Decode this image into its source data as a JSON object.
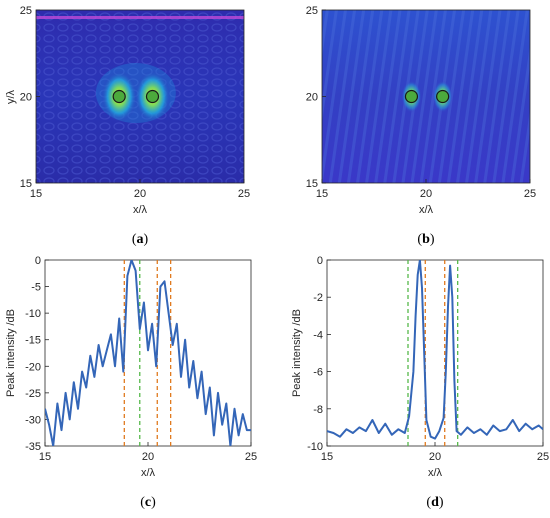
{
  "panels": [
    {
      "label": "a",
      "type": "heatmap",
      "xlabel": "x/λ",
      "ylabel": "y/λ",
      "xlim": [
        15,
        25
      ],
      "ylim": [
        15,
        25
      ],
      "xticks": [
        "15",
        "20",
        "25"
      ],
      "yticks": [
        "15",
        "20",
        "25"
      ],
      "targets": [
        {
          "x": 19.0,
          "y": 20.0
        },
        {
          "x": 20.6,
          "y": 20.0
        }
      ]
    },
    {
      "label": "b",
      "type": "heatmap",
      "xlabel": "x/λ",
      "ylabel": "",
      "xlim": [
        15,
        25
      ],
      "ylim": [
        15,
        25
      ],
      "xticks": [
        "15",
        "20",
        "25"
      ],
      "yticks": [
        "15",
        "20",
        "25"
      ],
      "targets": [
        {
          "x": 19.3,
          "y": 20.0
        },
        {
          "x": 20.8,
          "y": 20.0
        }
      ]
    },
    {
      "label": "c",
      "type": "line",
      "xlabel": "x/λ",
      "ylabel": "Peak intensity /dB",
      "xlim": [
        15,
        25
      ],
      "ylim": [
        -35,
        0
      ],
      "xticks": [
        "15",
        "20",
        "25"
      ],
      "yticks": [
        "0",
        "-5",
        "-10",
        "-15",
        "-20",
        "-25",
        "-30",
        "-35"
      ]
    },
    {
      "label": "d",
      "type": "line",
      "xlabel": "x/λ",
      "ylabel": "Peak intensity /dB",
      "xlim": [
        15,
        25
      ],
      "ylim": [
        -10,
        0
      ],
      "xticks": [
        "15",
        "20",
        "25"
      ],
      "yticks": [
        "0",
        "-2",
        "-4",
        "-6",
        "-8",
        "-10"
      ]
    }
  ],
  "chart_data": [
    {
      "type": "heatmap",
      "panel": "a",
      "xlabel": "x/λ",
      "ylabel": "y/λ",
      "xlim": [
        15,
        25
      ],
      "ylim": [
        15,
        25
      ],
      "highlighted_points": [
        {
          "x": 19.0,
          "y": 20.0
        },
        {
          "x": 20.6,
          "y": 20.0
        }
      ],
      "colors": {
        "background": "#2a2fb4",
        "low": "#1a1aa0",
        "mid": "#1fa0e0",
        "high": "#d8e81a"
      }
    },
    {
      "type": "heatmap",
      "panel": "b",
      "xlabel": "x/λ",
      "ylabel": "",
      "xlim": [
        15,
        25
      ],
      "ylim": [
        15,
        25
      ],
      "highlighted_points": [
        {
          "x": 19.3,
          "y": 20.0
        },
        {
          "x": 20.8,
          "y": 20.0
        }
      ],
      "colors": {
        "background": "#3439c4",
        "low": "#2a2fb4",
        "mid": "#20b0e0",
        "high": "#d8e81a"
      }
    },
    {
      "type": "line",
      "panel": "c",
      "xlabel": "x/λ",
      "ylabel": "Peak intensity /dB",
      "xlim": [
        15,
        25
      ],
      "ylim": [
        -35,
        0
      ],
      "series": [
        {
          "color": "#3466b8",
          "x": [
            15.0,
            15.2,
            15.4,
            15.6,
            15.8,
            16.0,
            16.2,
            16.4,
            16.6,
            16.8,
            17.0,
            17.2,
            17.4,
            17.6,
            17.8,
            18.0,
            18.2,
            18.4,
            18.6,
            18.8,
            19.0,
            19.2,
            19.4,
            19.6,
            19.8,
            20.0,
            20.2,
            20.4,
            20.6,
            20.8,
            21.0,
            21.2,
            21.4,
            21.6,
            21.8,
            22.0,
            22.2,
            22.4,
            22.6,
            22.8,
            23.0,
            23.2,
            23.4,
            23.6,
            23.8,
            24.0,
            24.2,
            24.4,
            24.6,
            24.8,
            25.0
          ],
          "y": [
            -28,
            -31,
            -35,
            -27,
            -32,
            -25,
            -30,
            -23,
            -28,
            -21,
            -24,
            -18,
            -22,
            -16,
            -20,
            -17,
            -14,
            -20,
            -11,
            -21,
            -3,
            0,
            -2,
            -13,
            -8,
            -17,
            -12,
            -20,
            -5,
            -4,
            -10,
            -16,
            -12,
            -22,
            -15,
            -24,
            -19,
            -26,
            -21,
            -29,
            -24,
            -33,
            -25,
            -31,
            -27,
            -35,
            -28,
            -33,
            -29,
            -32,
            -32
          ]
        }
      ],
      "vlines": [
        {
          "x": 18.85,
          "color": "#e07a1f",
          "style": "dashed"
        },
        {
          "x": 19.6,
          "color": "#56b84a",
          "style": "dashed"
        },
        {
          "x": 20.45,
          "color": "#e07a1f",
          "style": "dashed"
        },
        {
          "x": 21.1,
          "color": "#e07a1f",
          "style": "dashed"
        }
      ]
    },
    {
      "type": "line",
      "panel": "d",
      "xlabel": "x/λ",
      "ylabel": "Peak intensity /dB",
      "xlim": [
        15,
        25
      ],
      "ylim": [
        -10,
        0
      ],
      "series": [
        {
          "color": "#3466b8",
          "x": [
            15.0,
            15.3,
            15.6,
            15.9,
            16.2,
            16.5,
            16.8,
            17.1,
            17.4,
            17.7,
            18.0,
            18.3,
            18.6,
            18.8,
            19.0,
            19.1,
            19.2,
            19.3,
            19.4,
            19.5,
            19.6,
            19.8,
            20.0,
            20.2,
            20.4,
            20.5,
            20.6,
            20.7,
            20.8,
            20.9,
            21.0,
            21.2,
            21.5,
            21.8,
            22.1,
            22.4,
            22.7,
            23.0,
            23.3,
            23.6,
            23.9,
            24.2,
            24.5,
            24.8,
            25.0
          ],
          "y": [
            -9.2,
            -9.3,
            -9.5,
            -9.1,
            -9.3,
            -9.0,
            -9.2,
            -8.6,
            -9.3,
            -8.8,
            -9.4,
            -9.1,
            -9.3,
            -8.4,
            -6.0,
            -3.0,
            -0.8,
            0.0,
            -1.5,
            -5.0,
            -8.6,
            -9.5,
            -9.6,
            -9.2,
            -8.5,
            -6.0,
            -2.5,
            -0.3,
            -2.0,
            -6.5,
            -9.2,
            -9.4,
            -9.0,
            -9.3,
            -9.1,
            -9.4,
            -8.9,
            -9.2,
            -9.1,
            -8.6,
            -9.2,
            -8.8,
            -9.1,
            -8.9,
            -9.1
          ]
        }
      ],
      "vlines": [
        {
          "x": 18.75,
          "color": "#56b84a",
          "style": "dashed"
        },
        {
          "x": 19.55,
          "color": "#e07a1f",
          "style": "dashed"
        },
        {
          "x": 20.45,
          "color": "#e07a1f",
          "style": "dashed"
        },
        {
          "x": 21.05,
          "color": "#56b84a",
          "style": "dashed"
        }
      ]
    }
  ]
}
